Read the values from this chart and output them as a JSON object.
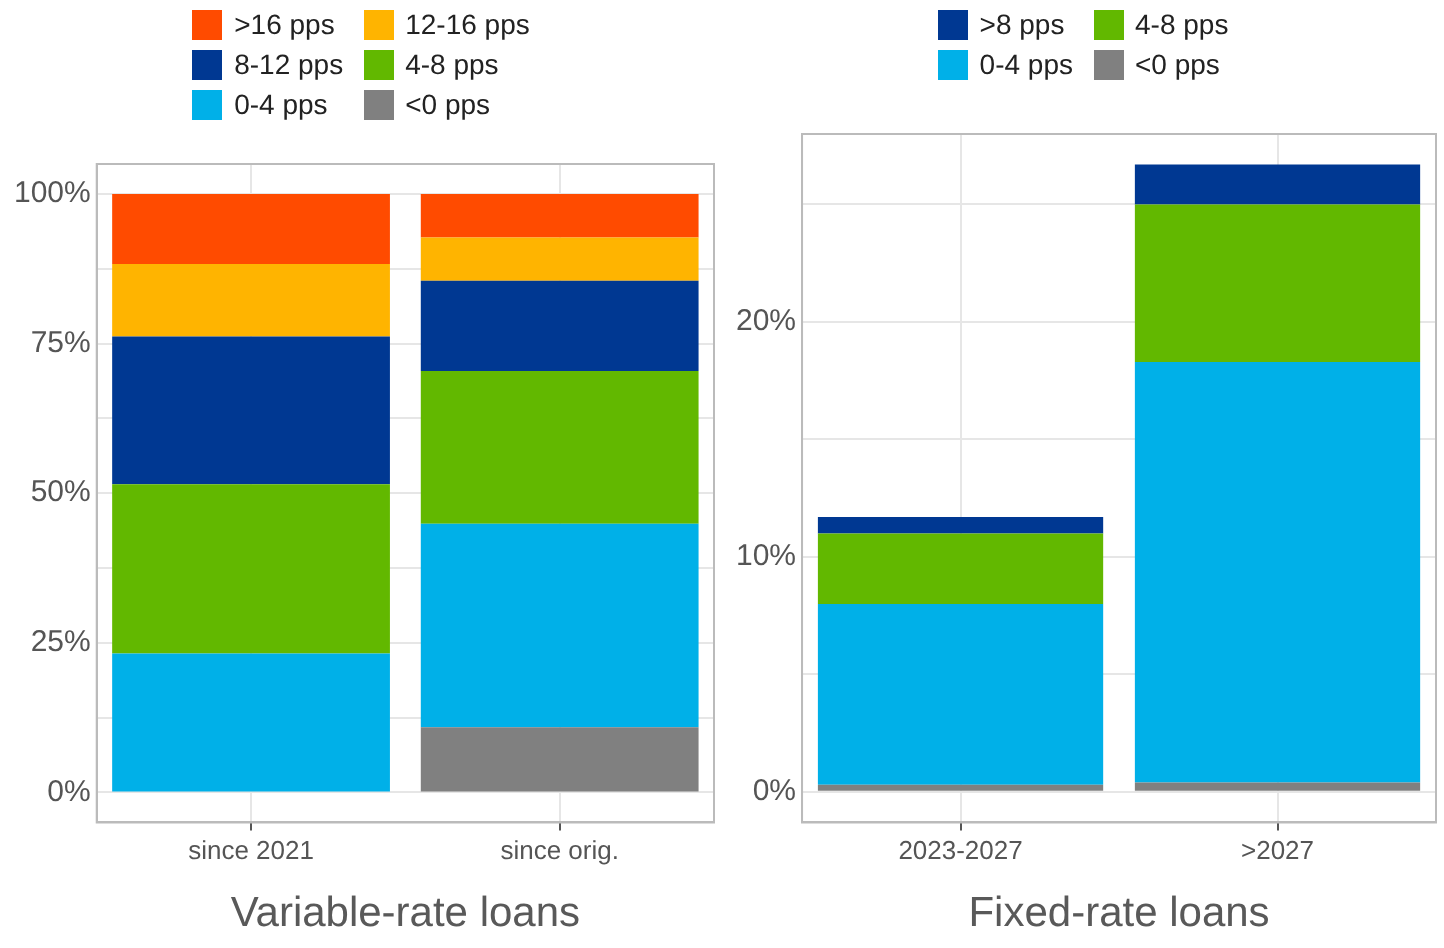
{
  "chart_data": [
    {
      "type": "bar",
      "stacked": true,
      "xlabel": "Variable-rate loans",
      "legend": "top",
      "grid": true,
      "categories": [
        "since 2021",
        "since orig."
      ],
      "series": [
        {
          "name": "<0 pps",
          "color": "#808080",
          "values": [
            0,
            10.9
          ]
        },
        {
          "name": "0-4 pps",
          "color": "#00b0e8",
          "values": [
            23.2,
            34.0
          ]
        },
        {
          "name": "4-8 pps",
          "color": "#62b800",
          "values": [
            28.3,
            25.5
          ]
        },
        {
          "name": "8-12 pps",
          "color": "#003892",
          "values": [
            24.7,
            15.1
          ]
        },
        {
          "name": "12-16 pps",
          "color": "#ffb400",
          "values": [
            12.1,
            7.2
          ]
        },
        {
          "name": ">16 pps",
          "color": "#ff4b00",
          "values": [
            11.7,
            7.3
          ]
        }
      ],
      "ylim": [
        -5,
        105
      ],
      "yticks": [
        {
          "value": 0,
          "label": "0%"
        },
        {
          "value": 12.5,
          "label": null
        },
        {
          "value": 25,
          "label": "25%"
        },
        {
          "value": 37.5,
          "label": null
        },
        {
          "value": 50,
          "label": "50%"
        },
        {
          "value": 62.5,
          "label": null
        },
        {
          "value": 75,
          "label": "75%"
        },
        {
          "value": 87.5,
          "label": null
        },
        {
          "value": 100,
          "label": "100%"
        }
      ]
    },
    {
      "type": "bar",
      "stacked": true,
      "xlabel": "Fixed-rate loans",
      "legend": "top",
      "grid": true,
      "categories": [
        "2023-2027",
        ">2027"
      ],
      "series": [
        {
          "name": "<0 pps",
          "color": "#808080",
          "values": [
            0.3,
            0.4
          ]
        },
        {
          "name": "0-4 pps",
          "color": "#00b0e8",
          "values": [
            7.7,
            17.9
          ]
        },
        {
          "name": "4-8 pps",
          "color": "#62b800",
          "values": [
            3.0,
            6.7
          ]
        },
        {
          "name": ">8 pps",
          "color": "#003892",
          "values": [
            0.7,
            1.7
          ]
        }
      ],
      "ylim": [
        -1.3,
        28
      ],
      "yticks": [
        {
          "value": 0,
          "label": "0%"
        },
        {
          "value": 5,
          "label": null
        },
        {
          "value": 10,
          "label": "10%"
        },
        {
          "value": 15,
          "label": null
        },
        {
          "value": 20,
          "label": "20%"
        },
        {
          "value": 25,
          "label": null
        }
      ]
    }
  ]
}
